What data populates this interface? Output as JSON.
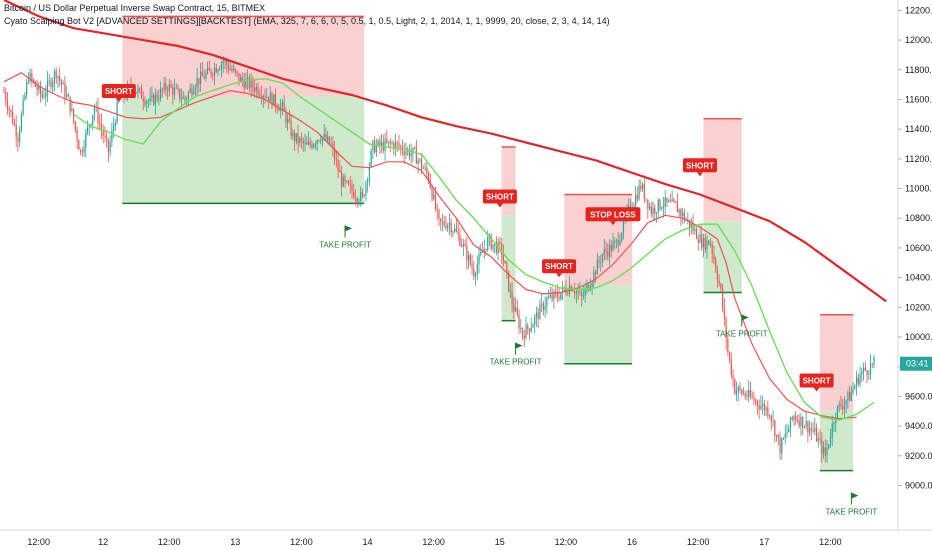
{
  "header": {
    "title": "Bitcoin / US Dollar Perpetual Inverse Swap Contract, 15, BITMEX",
    "indicator": "Cyato Scalping Bot V2 [ADVANCED SETTINGS][BACKTEST] (EMA, 325, 7, 6, 6, 0, 5, 0.5, 1, 0.5, Light, 2, 1, 2014, 1, 1, 9999, 20, close, 2, 3, 4, 14, 14)"
  },
  "colors": {
    "up": "#26a69a",
    "down": "#ef5350",
    "slow_ema": "#e0262a",
    "fast_ema": "#6fdc5a",
    "short_zone": "#f9c9c9",
    "profit_zone": "#c9e7c7",
    "short_tag": "#e8221d",
    "take_profit": "#1b7a2e",
    "price_label": "#26a69a"
  },
  "price_label": "03:41",
  "chart_data": {
    "type": "candlestick",
    "y_axis": {
      "ticks": [
        9000,
        9200,
        9400,
        9600,
        9800,
        10000,
        10200,
        10400,
        10600,
        10800,
        11000,
        11200,
        11400,
        11600,
        11800,
        12000,
        12200
      ],
      "tick_labels": [
        "9000.0",
        "9200.0",
        "9400.0",
        "9600.0",
        "9800.0",
        "10000.0",
        "10200.0",
        "10400.0",
        "10600.0",
        "10800.0",
        "11000.0",
        "11200.0",
        "11400.0",
        "11600.0",
        "11800.0",
        "12000.0",
        "12200.0"
      ],
      "range": [
        8700,
        12270
      ],
      "position": "right"
    },
    "x_axis": {
      "range": [
        0,
        520
      ],
      "ticks": [
        {
          "x": 5,
          "label": "12:00"
        },
        {
          "x": 42,
          "label": "12"
        },
        {
          "x": 80,
          "label": "12:00"
        },
        {
          "x": 118,
          "label": "13"
        },
        {
          "x": 156,
          "label": "12:00"
        },
        {
          "x": 194,
          "label": "14"
        },
        {
          "x": 232,
          "label": "12:00"
        },
        {
          "x": 270,
          "label": "15"
        },
        {
          "x": 308,
          "label": "12:00"
        },
        {
          "x": 346,
          "label": "16"
        },
        {
          "x": 384,
          "label": "12:00"
        },
        {
          "x": 422,
          "label": "17"
        },
        {
          "x": 460,
          "label": "12:00"
        }
      ]
    },
    "price_path": [
      [
        0,
        11650
      ],
      [
        8,
        11350
      ],
      [
        14,
        11760
      ],
      [
        22,
        11620
      ],
      [
        30,
        11790
      ],
      [
        38,
        11560
      ],
      [
        44,
        11240
      ],
      [
        52,
        11550
      ],
      [
        60,
        11250
      ],
      [
        66,
        11600
      ],
      [
        74,
        11680
      ],
      [
        84,
        11580
      ],
      [
        94,
        11690
      ],
      [
        104,
        11600
      ],
      [
        110,
        11720
      ],
      [
        118,
        11780
      ],
      [
        126,
        11860
      ],
      [
        136,
        11730
      ],
      [
        146,
        11670
      ],
      [
        152,
        11620
      ],
      [
        160,
        11540
      ],
      [
        166,
        11350
      ],
      [
        174,
        11280
      ],
      [
        182,
        11360
      ],
      [
        188,
        11290
      ],
      [
        194,
        11050
      ],
      [
        198,
        11000
      ],
      [
        206,
        10930
      ],
      [
        212,
        11280
      ],
      [
        224,
        11300
      ],
      [
        236,
        11230
      ],
      [
        244,
        11080
      ],
      [
        250,
        10760
      ],
      [
        256,
        10770
      ],
      [
        262,
        10660
      ],
      [
        270,
        10440
      ],
      [
        278,
        10650
      ],
      [
        286,
        10580
      ],
      [
        292,
        10230
      ],
      [
        298,
        10020
      ],
      [
        304,
        10100
      ],
      [
        312,
        10250
      ],
      [
        318,
        10280
      ],
      [
        326,
        10350
      ],
      [
        332,
        10260
      ],
      [
        338,
        10400
      ],
      [
        344,
        10560
      ],
      [
        352,
        10630
      ],
      [
        358,
        10820
      ],
      [
        366,
        11020
      ],
      [
        372,
        10850
      ],
      [
        378,
        10900
      ],
      [
        386,
        10880
      ],
      [
        394,
        10760
      ],
      [
        402,
        10630
      ],
      [
        406,
        10640
      ],
      [
        412,
        10300
      ],
      [
        416,
        9900
      ],
      [
        420,
        9650
      ],
      [
        428,
        9600
      ],
      [
        434,
        9550
      ],
      [
        440,
        9500
      ],
      [
        446,
        9250
      ],
      [
        454,
        9470
      ],
      [
        460,
        9420
      ],
      [
        466,
        9350
      ],
      [
        472,
        9200
      ],
      [
        478,
        9500
      ],
      [
        486,
        9600
      ],
      [
        492,
        9750
      ],
      [
        500,
        9820
      ]
    ],
    "series": [
      {
        "name": "slow_ema",
        "color": "#e0262a",
        "values": [
          [
            0,
            12270
          ],
          [
            20,
            12160
          ],
          [
            40,
            12080
          ],
          [
            60,
            12040
          ],
          [
            80,
            12000
          ],
          [
            100,
            11960
          ],
          [
            120,
            11900
          ],
          [
            140,
            11820
          ],
          [
            160,
            11740
          ],
          [
            180,
            11680
          ],
          [
            200,
            11630
          ],
          [
            220,
            11560
          ],
          [
            240,
            11480
          ],
          [
            260,
            11420
          ],
          [
            280,
            11370
          ],
          [
            300,
            11310
          ],
          [
            320,
            11250
          ],
          [
            340,
            11190
          ],
          [
            360,
            11110
          ],
          [
            380,
            11030
          ],
          [
            400,
            10960
          ],
          [
            420,
            10870
          ],
          [
            440,
            10780
          ],
          [
            460,
            10640
          ],
          [
            480,
            10470
          ],
          [
            500,
            10300
          ],
          [
            507,
            10240
          ]
        ]
      },
      {
        "name": "fast_ema",
        "color": "#6fdc5a",
        "values": [
          [
            40,
            11500
          ],
          [
            50,
            11420
          ],
          [
            60,
            11380
          ],
          [
            70,
            11330
          ],
          [
            80,
            11300
          ],
          [
            90,
            11450
          ],
          [
            100,
            11540
          ],
          [
            110,
            11620
          ],
          [
            120,
            11660
          ],
          [
            130,
            11700
          ],
          [
            140,
            11730
          ],
          [
            150,
            11740
          ],
          [
            160,
            11710
          ],
          [
            170,
            11620
          ],
          [
            180,
            11540
          ],
          [
            190,
            11460
          ],
          [
            200,
            11380
          ],
          [
            210,
            11300
          ],
          [
            220,
            11280
          ],
          [
            230,
            11270
          ],
          [
            240,
            11230
          ],
          [
            250,
            11080
          ],
          [
            260,
            10920
          ],
          [
            270,
            10800
          ],
          [
            280,
            10660
          ],
          [
            290,
            10520
          ],
          [
            300,
            10420
          ],
          [
            310,
            10370
          ],
          [
            320,
            10330
          ],
          [
            330,
            10320
          ],
          [
            340,
            10330
          ],
          [
            350,
            10380
          ],
          [
            360,
            10460
          ],
          [
            370,
            10560
          ],
          [
            380,
            10660
          ],
          [
            390,
            10720
          ],
          [
            400,
            10760
          ],
          [
            410,
            10760
          ],
          [
            420,
            10580
          ],
          [
            430,
            10340
          ],
          [
            440,
            10040
          ],
          [
            450,
            9760
          ],
          [
            460,
            9560
          ],
          [
            470,
            9460
          ],
          [
            480,
            9440
          ],
          [
            490,
            9480
          ],
          [
            500,
            9560
          ]
        ]
      }
    ],
    "red_line": [
      [
        0,
        11720
      ],
      [
        10,
        11780
      ],
      [
        20,
        11690
      ],
      [
        30,
        11630
      ],
      [
        40,
        11580
      ],
      [
        50,
        11560
      ],
      [
        60,
        11520
      ],
      [
        70,
        11480
      ],
      [
        80,
        11470
      ],
      [
        90,
        11480
      ],
      [
        100,
        11530
      ],
      [
        110,
        11580
      ],
      [
        120,
        11620
      ],
      [
        130,
        11660
      ],
      [
        140,
        11640
      ],
      [
        150,
        11600
      ],
      [
        160,
        11530
      ],
      [
        170,
        11460
      ],
      [
        180,
        11380
      ],
      [
        190,
        11260
      ],
      [
        200,
        11150
      ],
      [
        210,
        11140
      ],
      [
        220,
        11180
      ],
      [
        230,
        11180
      ],
      [
        240,
        11120
      ],
      [
        250,
        10950
      ],
      [
        260,
        10800
      ],
      [
        270,
        10620
      ],
      [
        280,
        10540
      ],
      [
        290,
        10420
      ],
      [
        300,
        10320
      ],
      [
        310,
        10290
      ],
      [
        320,
        10300
      ],
      [
        330,
        10330
      ],
      [
        340,
        10390
      ],
      [
        350,
        10490
      ],
      [
        360,
        10620
      ],
      [
        370,
        10770
      ],
      [
        380,
        10820
      ],
      [
        390,
        10800
      ],
      [
        400,
        10740
      ],
      [
        410,
        10660
      ],
      [
        415,
        10500
      ],
      [
        420,
        10260
      ],
      [
        430,
        9950
      ],
      [
        440,
        9720
      ],
      [
        450,
        9580
      ],
      [
        460,
        9500
      ],
      [
        470,
        9470
      ],
      [
        480,
        9450
      ],
      [
        490,
        9460
      ]
    ],
    "trades": [
      {
        "label": "SHORT",
        "x0": 68,
        "x1": 207,
        "entry": 11620,
        "stop": 12160,
        "target": 10900,
        "result": "TAKE PROFIT",
        "signal_x": 66,
        "exit_x": 196
      },
      {
        "label": "SHORT",
        "x0": 286,
        "x1": 294,
        "entry": 10820,
        "stop": 11280,
        "target": 10110,
        "result": "TAKE PROFIT",
        "signal_x": 285,
        "exit_x": 294
      },
      {
        "label": "SHORT",
        "x0": 322,
        "x1": 361,
        "entry": 10350,
        "stop": 10960,
        "target": 9820,
        "result": "",
        "signal_x": 319,
        "exit_x": 0
      },
      {
        "label": "STOP LOSS",
        "x0": 0,
        "x1": 0,
        "entry": 0,
        "stop": 0,
        "target": 0,
        "result": "",
        "signal_x": 350,
        "exit_x": 0
      },
      {
        "label": "SHORT",
        "x0": 402,
        "x1": 424,
        "entry": 10780,
        "stop": 11470,
        "target": 10300,
        "result": "TAKE PROFIT",
        "signal_x": 400,
        "exit_x": 424
      },
      {
        "label": "SHORT",
        "x0": 469,
        "x1": 488,
        "entry": 9500,
        "stop": 10150,
        "target": 9100,
        "result": "TAKE PROFIT",
        "signal_x": 467,
        "exit_x": 487
      }
    ],
    "tag_price": {
      "SHORT_0": 11650,
      "SHORT_1": 10940,
      "SHORT_2": 10470,
      "STOP_LOSS": 10820,
      "SHORT_3": 11150,
      "SHORT_4": 9700
    },
    "last_price": 9820
  }
}
